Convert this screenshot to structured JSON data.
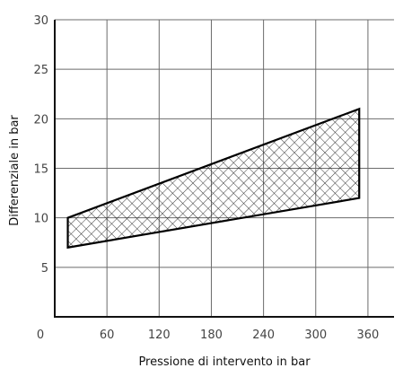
{
  "chart_data": {
    "type": "area",
    "xlabel": "Pressione di intervento in bar",
    "ylabel": "Differenziale in bar",
    "xlim": [
      0,
      390
    ],
    "ylim": [
      0,
      30
    ],
    "x_ticks": [
      60,
      120,
      180,
      240,
      300,
      360
    ],
    "y_ticks": [
      0,
      5,
      10,
      15,
      20,
      25,
      30
    ],
    "origin_label": "0",
    "grid": true,
    "series": [
      {
        "upper": [
          {
            "x": 15,
            "y": 10
          },
          {
            "x": 350,
            "y": 21
          }
        ],
        "lower": [
          {
            "x": 15,
            "y": 7
          },
          {
            "x": 350,
            "y": 12
          }
        ],
        "fill": "crosshatch"
      }
    ]
  },
  "colors": {
    "line": "#000000",
    "grid": "#6b6b6b",
    "hatch": "#222222"
  }
}
